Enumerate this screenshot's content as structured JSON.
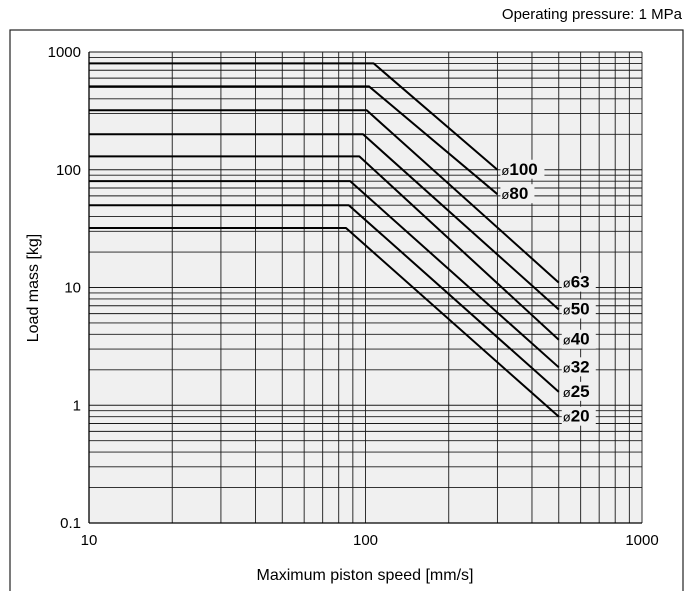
{
  "chart_data": {
    "type": "line",
    "subtitle": "Operating pressure: 1 MPa",
    "xlabel": "Maximum piston speed [mm/s]",
    "ylabel": "Load mass [kg]",
    "xscale": "log",
    "yscale": "log",
    "xlim": [
      10,
      1000
    ],
    "ylim": [
      0.1,
      1000
    ],
    "xticks": [
      10,
      100,
      1000
    ],
    "xtick_labels": [
      "10",
      "100",
      "1000"
    ],
    "yticks": [
      0.1,
      1,
      10,
      100,
      1000
    ],
    "ytick_labels": [
      "0.1",
      "1",
      "10",
      "100",
      "1000"
    ],
    "grid": true,
    "series": [
      {
        "name": "ø100",
        "symbol": "ø",
        "size": "100",
        "x": [
          10,
          107,
          300
        ],
        "y": [
          800,
          800,
          100
        ]
      },
      {
        "name": "ø80",
        "symbol": "ø",
        "size": "80",
        "x": [
          10,
          103,
          300
        ],
        "y": [
          510,
          510,
          62
        ]
      },
      {
        "name": "ø63",
        "symbol": "ø",
        "size": "63",
        "x": [
          10,
          101,
          500
        ],
        "y": [
          320,
          320,
          11
        ]
      },
      {
        "name": "ø50",
        "symbol": "ø",
        "size": "50",
        "x": [
          10,
          98,
          500
        ],
        "y": [
          200,
          200,
          6.5
        ]
      },
      {
        "name": "ø40",
        "symbol": "ø",
        "size": "40",
        "x": [
          10,
          95,
          500
        ],
        "y": [
          130,
          130,
          3.6
        ]
      },
      {
        "name": "ø32",
        "symbol": "ø",
        "size": "32",
        "x": [
          10,
          88,
          500
        ],
        "y": [
          80,
          80,
          2.1
        ]
      },
      {
        "name": "ø25",
        "symbol": "ø",
        "size": "25",
        "x": [
          10,
          87,
          500
        ],
        "y": [
          50,
          50,
          1.3
        ]
      },
      {
        "name": "ø20",
        "symbol": "ø",
        "size": "20",
        "x": [
          10,
          85,
          500
        ],
        "y": [
          32,
          32,
          0.8
        ]
      }
    ]
  }
}
